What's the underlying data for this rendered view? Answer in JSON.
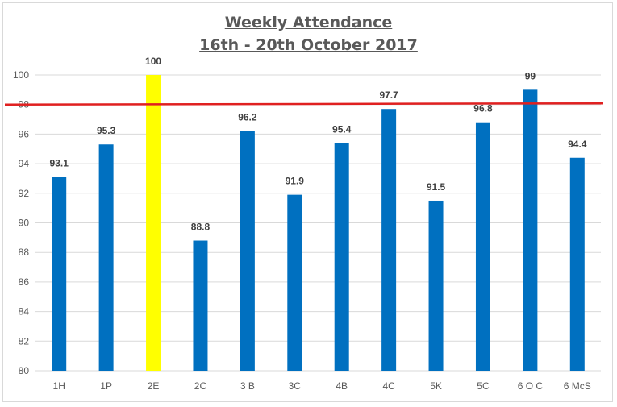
{
  "chart_data": {
    "type": "bar",
    "title_lines": [
      "Weekly Attendance",
      "16th - 20th October 2017"
    ],
    "categories": [
      "1H",
      "1P",
      "2E",
      "2C",
      "3 B",
      "3C",
      "4B",
      "4C",
      "5K",
      "5C",
      "6 O C",
      "6 McS"
    ],
    "values": [
      93.1,
      95.3,
      100,
      88.8,
      96.2,
      91.9,
      95.4,
      97.7,
      91.5,
      96.8,
      99,
      94.4
    ],
    "value_labels": [
      "93.1",
      "95.3",
      "100",
      "88.8",
      "96.2",
      "91.9",
      "95.4",
      "97.7",
      "91.5",
      "96.8",
      "99",
      "94.4"
    ],
    "ylim": [
      80,
      100
    ],
    "yticks": [
      "80",
      "82",
      "84",
      "86",
      "88",
      "90",
      "92",
      "94",
      "96",
      "98",
      "100"
    ],
    "grid": true,
    "reference_line": {
      "value": 98
    },
    "colors": {
      "bar": "#0070c0",
      "highlight_bar": "#ffff00",
      "highlight_category": "2E",
      "reference_line": "#e02020",
      "grid": "#d9d9d9"
    }
  }
}
